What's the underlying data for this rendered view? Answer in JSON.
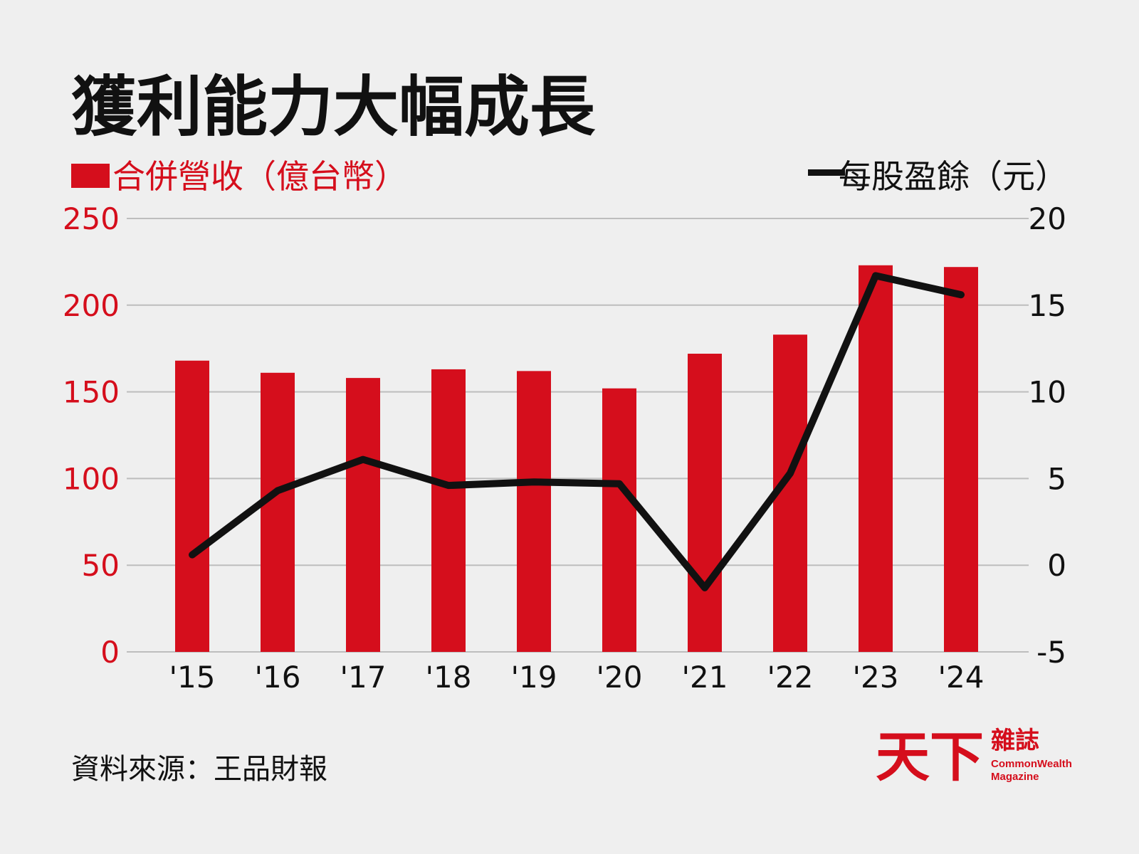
{
  "title": "獲利能力大幅成長",
  "legend": {
    "left_label": "合併營收（億台幣）",
    "right_label": "每股盈餘（元）"
  },
  "source": "資料來源：王品財報",
  "logo": {
    "zh_main": "天下",
    "zh_sub": "雜誌",
    "en_line1": "CommonWealth",
    "en_line2": "Magazine"
  },
  "colors": {
    "bar": "#d50e1c",
    "line": "#111111",
    "background": "#efefef",
    "grid": "#bdbdbd"
  },
  "chart_data": {
    "type": "bar",
    "categories": [
      "'15",
      "'16",
      "'17",
      "'18",
      "'19",
      "'20",
      "'21",
      "'22",
      "'23",
      "'24"
    ],
    "series": [
      {
        "type": "bar",
        "axis": "left",
        "values": [
          168,
          161,
          158,
          163,
          162,
          152,
          172,
          183,
          223,
          222
        ]
      },
      {
        "type": "line",
        "axis": "right",
        "values": [
          0.6,
          4.3,
          6.1,
          4.6,
          4.8,
          4.7,
          -1.3,
          5.3,
          16.7,
          15.6
        ]
      }
    ],
    "left_axis": {
      "ylim": [
        0,
        250
      ],
      "ticks": [
        "0",
        "50",
        "100",
        "150",
        "200",
        "250"
      ]
    },
    "right_axis": {
      "ylim": [
        -5,
        20
      ],
      "ticks": [
        "-5",
        "0",
        "5",
        "10",
        "15",
        "20"
      ]
    },
    "grid": true
  }
}
